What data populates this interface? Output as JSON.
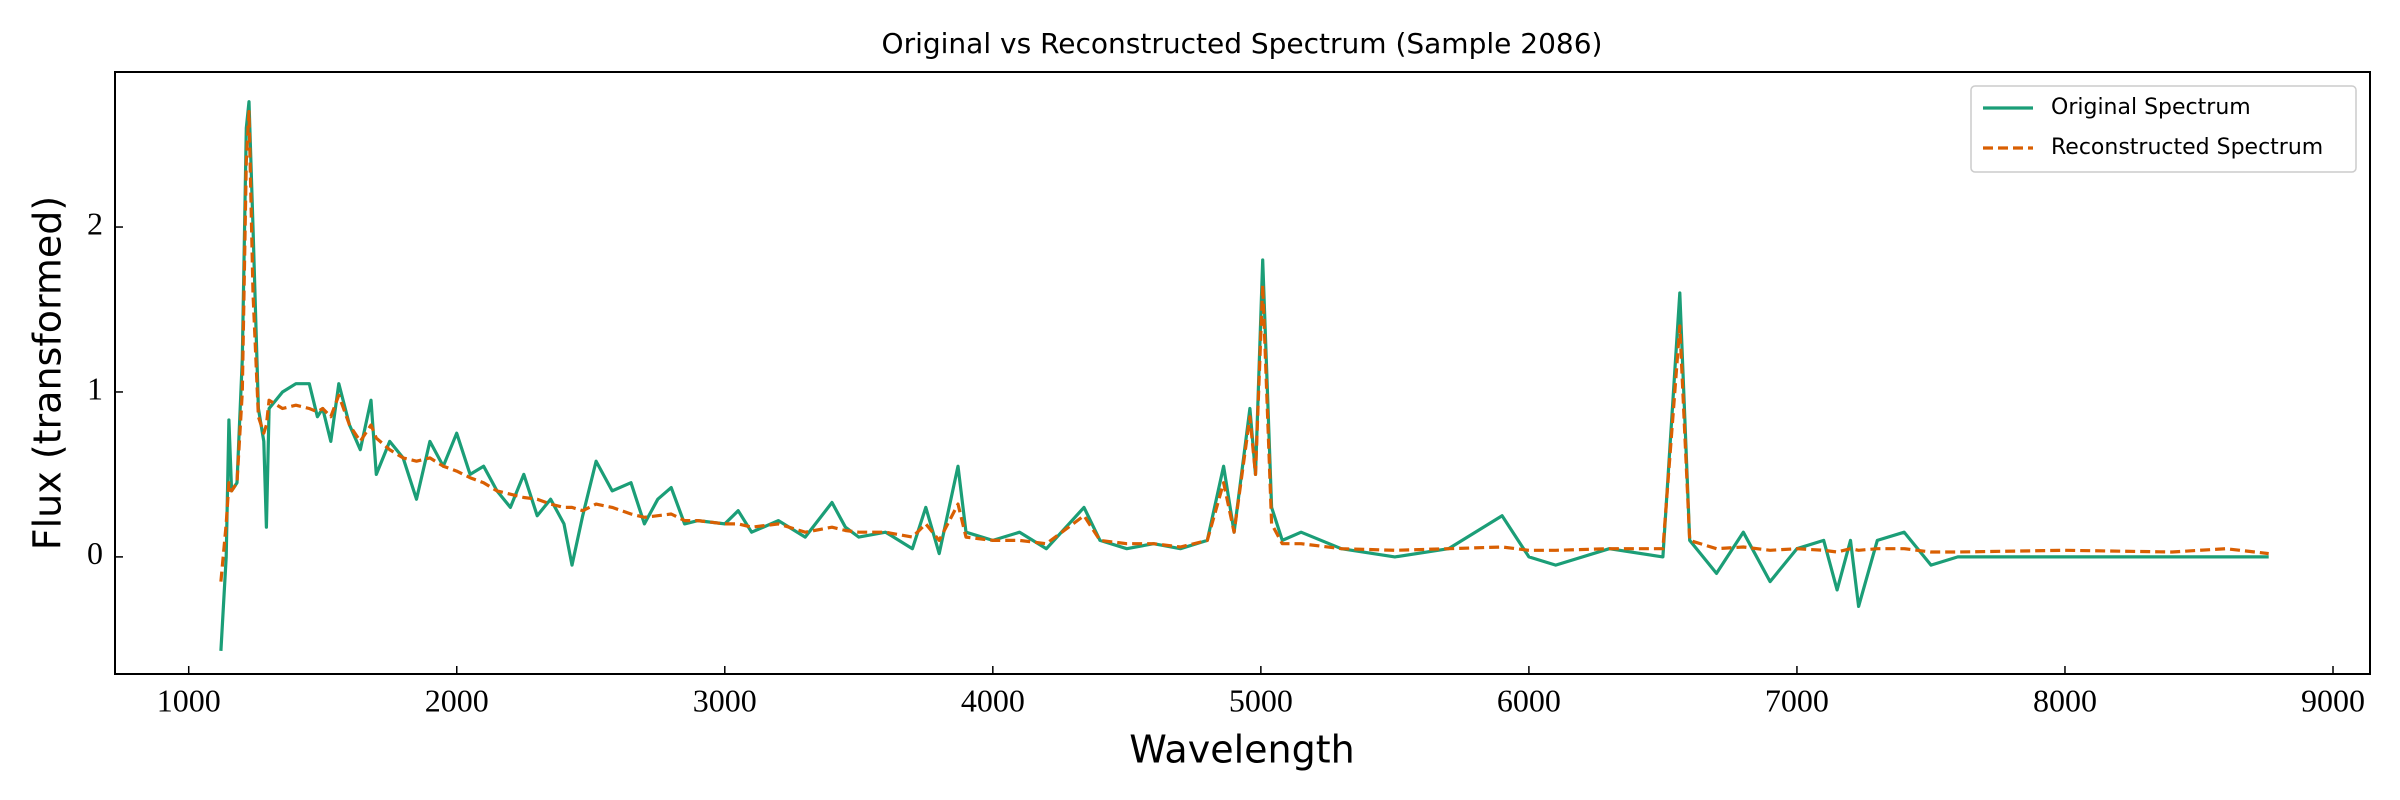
{
  "chart_data": {
    "type": "line",
    "title": "Original vs Reconstructed Spectrum (Sample 2086)",
    "x_label": "Wavelength",
    "y_label": "Flux (transformed)",
    "x": [
      1120,
      1140,
      1150,
      1160,
      1180,
      1200,
      1215,
      1225,
      1240,
      1260,
      1280,
      1290,
      1300,
      1350,
      1400,
      1450,
      1480,
      1500,
      1530,
      1560,
      1600,
      1640,
      1680,
      1700,
      1750,
      1800,
      1850,
      1900,
      1950,
      2000,
      2050,
      2100,
      2150,
      2200,
      2250,
      2300,
      2350,
      2400,
      2430,
      2470,
      2520,
      2580,
      2650,
      2700,
      2750,
      2800,
      2850,
      2900,
      3000,
      3050,
      3100,
      3200,
      3300,
      3400,
      3450,
      3500,
      3600,
      3700,
      3750,
      3800,
      3870,
      3900,
      4000,
      4100,
      4200,
      4340,
      4400,
      4500,
      4600,
      4700,
      4800,
      4861,
      4900,
      4959,
      4980,
      5007,
      5040,
      5080,
      5150,
      5300,
      5500,
      5700,
      5900,
      6000,
      6100,
      6300,
      6500,
      6563,
      6600,
      6700,
      6800,
      6900,
      7000,
      7100,
      7150,
      7200,
      7230,
      7300,
      7400,
      7500,
      7600,
      8000,
      8400,
      8600,
      8760
    ],
    "series": [
      {
        "name": "Original Spectrum",
        "color": "#1b9e77",
        "dash": false,
        "values": [
          -0.57,
          0.0,
          0.83,
          0.4,
          0.45,
          1.2,
          2.6,
          2.76,
          2.0,
          0.9,
          0.7,
          0.18,
          0.9,
          1.0,
          1.05,
          1.05,
          0.85,
          0.9,
          0.7,
          1.05,
          0.8,
          0.65,
          0.95,
          0.5,
          0.7,
          0.6,
          0.35,
          0.7,
          0.55,
          0.75,
          0.5,
          0.55,
          0.4,
          0.3,
          0.5,
          0.25,
          0.35,
          0.2,
          -0.05,
          0.25,
          0.58,
          0.4,
          0.45,
          0.2,
          0.35,
          0.42,
          0.2,
          0.22,
          0.2,
          0.28,
          0.15,
          0.22,
          0.12,
          0.33,
          0.18,
          0.12,
          0.15,
          0.05,
          0.3,
          0.02,
          0.55,
          0.15,
          0.1,
          0.15,
          0.05,
          0.3,
          0.1,
          0.05,
          0.08,
          0.05,
          0.1,
          0.55,
          0.15,
          0.9,
          0.5,
          1.8,
          0.3,
          0.1,
          0.15,
          0.05,
          0.0,
          0.05,
          0.25,
          0.0,
          -0.05,
          0.05,
          0.0,
          1.6,
          0.1,
          -0.1,
          0.15,
          -0.15,
          0.05,
          0.1,
          -0.2,
          0.1,
          -0.3,
          0.1,
          0.15,
          -0.05,
          0.0,
          0.0,
          0.0,
          0.0,
          0.0
        ]
      },
      {
        "name": "Reconstructed Spectrum",
        "color": "#d95f02",
        "dash": true,
        "values": [
          -0.15,
          0.2,
          0.45,
          0.4,
          0.45,
          1.0,
          2.4,
          2.7,
          1.6,
          0.85,
          0.75,
          0.8,
          0.95,
          0.9,
          0.92,
          0.9,
          0.88,
          0.9,
          0.85,
          0.98,
          0.8,
          0.7,
          0.8,
          0.72,
          0.65,
          0.6,
          0.58,
          0.6,
          0.55,
          0.52,
          0.48,
          0.45,
          0.4,
          0.38,
          0.36,
          0.35,
          0.32,
          0.3,
          0.3,
          0.28,
          0.32,
          0.3,
          0.26,
          0.24,
          0.25,
          0.26,
          0.22,
          0.22,
          0.2,
          0.2,
          0.18,
          0.2,
          0.15,
          0.18,
          0.16,
          0.15,
          0.15,
          0.12,
          0.2,
          0.1,
          0.32,
          0.12,
          0.1,
          0.1,
          0.08,
          0.25,
          0.1,
          0.08,
          0.08,
          0.06,
          0.1,
          0.45,
          0.15,
          0.85,
          0.5,
          1.65,
          0.2,
          0.08,
          0.08,
          0.05,
          0.04,
          0.05,
          0.06,
          0.04,
          0.04,
          0.05,
          0.05,
          1.4,
          0.1,
          0.05,
          0.06,
          0.04,
          0.05,
          0.04,
          0.03,
          0.05,
          0.04,
          0.05,
          0.05,
          0.03,
          0.03,
          0.04,
          0.03,
          0.05,
          0.02
        ]
      }
    ],
    "xlim": [
      725,
      9138
    ],
    "ylim": [
      -0.71,
      2.94
    ],
    "xticks": [
      1000,
      2000,
      3000,
      4000,
      5000,
      6000,
      7000,
      8000,
      9000
    ],
    "yticks": [
      0,
      1,
      2
    ],
    "legend": "upper right"
  }
}
